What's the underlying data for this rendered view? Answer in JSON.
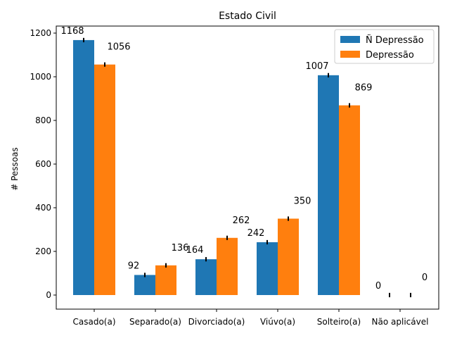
{
  "chart_data": {
    "type": "bar",
    "title": "Estado Civil",
    "xlabel": "",
    "ylabel": "# Pessoas",
    "ylim": [
      -60,
      1245
    ],
    "yticks": [
      0,
      200,
      400,
      600,
      800,
      1000,
      1200
    ],
    "categories": [
      "Casado(a)",
      "Separado(a)",
      "Divorciado(a)",
      "Viúvo(a)",
      "Solteiro(a)",
      "Não aplicável"
    ],
    "series": [
      {
        "name": "Ñ Depressão",
        "color": "#1f77b4",
        "values": [
          1168,
          92,
          164,
          242,
          1007,
          0
        ],
        "errors": [
          10,
          10,
          10,
          10,
          10,
          10
        ]
      },
      {
        "name": "Depressão",
        "color": "#ff7f0e",
        "values": [
          1056,
          136,
          262,
          350,
          869,
          0
        ],
        "errors": [
          10,
          10,
          10,
          10,
          10,
          10
        ]
      }
    ],
    "data_labels": [
      [
        "1168",
        "92",
        "164",
        "242",
        "1007",
        "0"
      ],
      [
        "1056",
        "136",
        "262",
        "350",
        "869",
        "0"
      ]
    ],
    "legend_position": "top-right",
    "grid": false
  }
}
